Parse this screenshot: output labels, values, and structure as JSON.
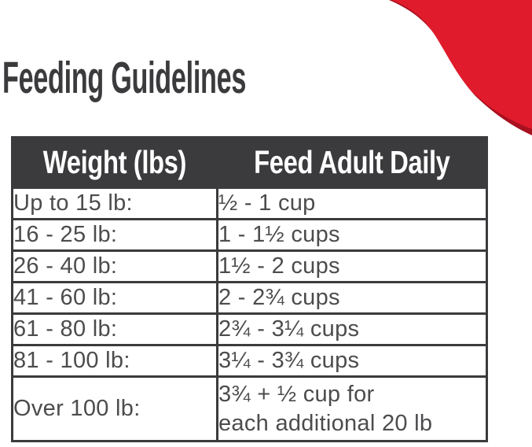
{
  "page": {
    "title": "Feeding Guidelines"
  },
  "colors": {
    "accent_red": "#e01b2c",
    "accent_red_dark": "#a81020",
    "charcoal": "#3b3a3c",
    "body_text": "#4c4c4e"
  },
  "table": {
    "headers": [
      "Weight (lbs)",
      "Feed Adult Daily"
    ],
    "rows": [
      {
        "weight": "Up to 15 lb:",
        "amount": "½ - 1 cup"
      },
      {
        "weight": "16 - 25 lb:",
        "amount": "1 - 1½ cups"
      },
      {
        "weight": "26 - 40 lb:",
        "amount": "1½ - 2 cups"
      },
      {
        "weight": "41 - 60 lb:",
        "amount": "2 - 2¾ cups"
      },
      {
        "weight": "61 - 80 lb:",
        "amount": "2¾ - 3¼ cups"
      },
      {
        "weight": "81 - 100 lb:",
        "amount": "3¼ - 3¾ cups"
      },
      {
        "weight": "Over 100 lb:",
        "amount": "3¾ + ½ cup for\neach additional 20 lb"
      }
    ]
  }
}
